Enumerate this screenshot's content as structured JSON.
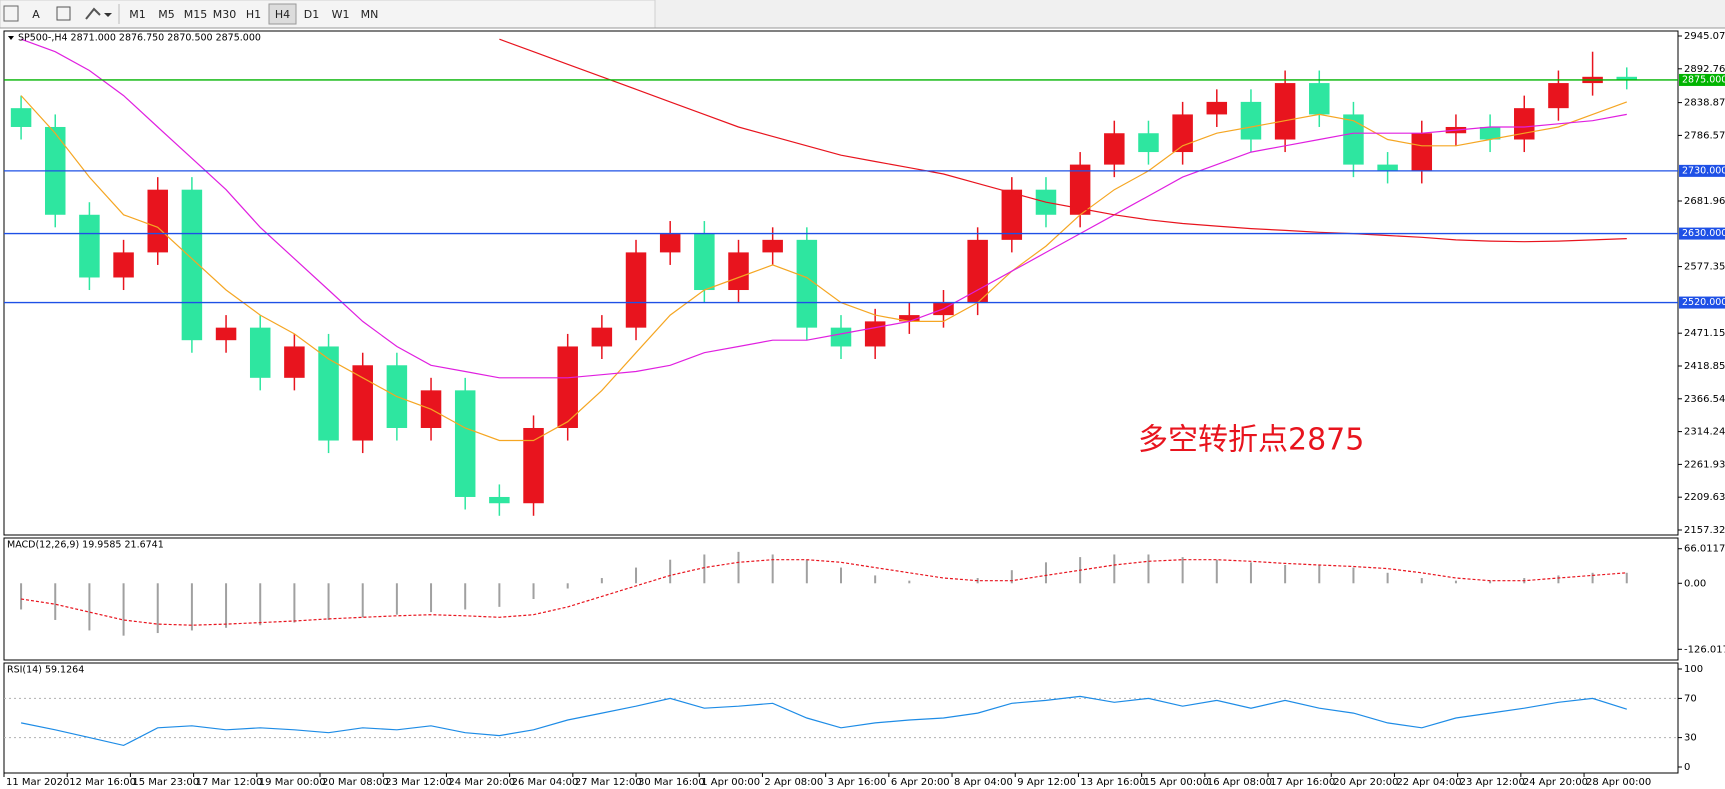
{
  "toolbar": {
    "text_tool": "A",
    "timeframes": [
      "M1",
      "M5",
      "M15",
      "M30",
      "H1",
      "H4",
      "D1",
      "W1",
      "MN"
    ],
    "active": "H4"
  },
  "chart_data": [
    {
      "type": "candlestick",
      "title": "SP500-,H4  2871.000 2876.750 2870.500 2875.000",
      "up_color": "#e8141e",
      "down_color": "#2ee6a0",
      "xlim": [
        0,
        49
      ],
      "ylim": [
        2157.325,
        2945.07
      ],
      "yticks": [
        {
          "value": 2945.07,
          "label": "2945.070"
        },
        {
          "value": 2892.765,
          "label": "2892.765"
        },
        {
          "value": 2838.87,
          "label": "2838.870"
        },
        {
          "value": 2786.57,
          "label": "2786.570"
        },
        {
          "value": 2681.96,
          "label": "2681.960"
        },
        {
          "value": 2577.35,
          "label": "2577.350"
        },
        {
          "value": 2471.155,
          "label": "2471.155"
        },
        {
          "value": 2418.85,
          "label": "2418.850"
        },
        {
          "value": 2366.545,
          "label": "2366.545"
        },
        {
          "value": 2314.24,
          "label": "2314.240"
        },
        {
          "value": 2261.935,
          "label": "2261.935"
        },
        {
          "value": 2209.63,
          "label": "2209.630"
        },
        {
          "value": 2157.325,
          "label": "2157.325"
        }
      ],
      "open": [
        2830,
        2800,
        2660,
        2560,
        2600,
        2700,
        2460,
        2480,
        2400,
        2450,
        2300,
        2420,
        2320,
        2380,
        2210,
        2200,
        2320,
        2450,
        2480,
        2600,
        2630,
        2540,
        2600,
        2620,
        2480,
        2450,
        2490,
        2500,
        2520,
        2620,
        2700,
        2660,
        2740,
        2790,
        2760,
        2820,
        2840,
        2780,
        2870,
        2820,
        2740,
        2730,
        2790,
        2800,
        2780,
        2830,
        2870,
        2880
      ],
      "high": [
        2850,
        2820,
        2680,
        2620,
        2720,
        2720,
        2500,
        2500,
        2470,
        2470,
        2440,
        2440,
        2400,
        2400,
        2230,
        2340,
        2470,
        2500,
        2620,
        2650,
        2650,
        2620,
        2640,
        2640,
        2500,
        2510,
        2520,
        2540,
        2640,
        2720,
        2720,
        2760,
        2810,
        2810,
        2840,
        2860,
        2860,
        2890,
        2890,
        2840,
        2760,
        2810,
        2820,
        2820,
        2850,
        2890,
        2920,
        2895
      ],
      "low": [
        2780,
        2640,
        2540,
        2540,
        2580,
        2440,
        2440,
        2380,
        2380,
        2280,
        2280,
        2300,
        2300,
        2190,
        2180,
        2180,
        2300,
        2430,
        2460,
        2580,
        2520,
        2520,
        2580,
        2460,
        2430,
        2430,
        2470,
        2480,
        2500,
        2600,
        2640,
        2640,
        2720,
        2740,
        2740,
        2800,
        2760,
        2760,
        2800,
        2720,
        2710,
        2710,
        2770,
        2760,
        2760,
        2810,
        2850,
        2860
      ],
      "close": [
        2800,
        2660,
        2560,
        2600,
        2700,
        2460,
        2480,
        2400,
        2450,
        2300,
        2420,
        2320,
        2380,
        2210,
        2200,
        2320,
        2450,
        2480,
        2600,
        2630,
        2540,
        2600,
        2620,
        2480,
        2450,
        2490,
        2500,
        2520,
        2620,
        2700,
        2660,
        2740,
        2790,
        2760,
        2820,
        2840,
        2780,
        2870,
        2820,
        2740,
        2730,
        2790,
        2800,
        2780,
        2830,
        2870,
        2880,
        2875
      ],
      "series": [
        {
          "color": "#f5a623",
          "values": [
            2850,
            2790,
            2720,
            2660,
            2640,
            2590,
            2540,
            2500,
            2470,
            2430,
            2400,
            2370,
            2350,
            2320,
            2300,
            2300,
            2330,
            2380,
            2440,
            2500,
            2540,
            2560,
            2580,
            2560,
            2520,
            2500,
            2490,
            2490,
            2520,
            2570,
            2610,
            2660,
            2700,
            2730,
            2770,
            2790,
            2800,
            2810,
            2820,
            2810,
            2780,
            2770,
            2770,
            2780,
            2790,
            2800,
            2820,
            2840
          ]
        },
        {
          "color": "#e020e0",
          "values": [
            2940,
            2920,
            2890,
            2850,
            2800,
            2750,
            2700,
            2640,
            2590,
            2540,
            2490,
            2450,
            2420,
            2410,
            2400,
            2400,
            2400,
            2405,
            2410,
            2420,
            2440,
            2450,
            2460,
            2460,
            2470,
            2480,
            2490,
            2510,
            2540,
            2570,
            2600,
            2630,
            2660,
            2690,
            2720,
            2740,
            2760,
            2770,
            2780,
            2790,
            2790,
            2790,
            2795,
            2800,
            2800,
            2805,
            2810,
            2820
          ]
        },
        {
          "color": "#e8141e",
          "values": [
            null,
            null,
            null,
            null,
            null,
            null,
            null,
            null,
            null,
            null,
            null,
            null,
            null,
            null,
            2940,
            2920,
            2900,
            2880,
            2860,
            2840,
            2820,
            2800,
            2785,
            2770,
            2755,
            2745,
            2735,
            2725,
            2710,
            2695,
            2680,
            2670,
            2660,
            2652,
            2646,
            2642,
            2638,
            2635,
            2632,
            2630,
            2627,
            2624,
            2620,
            2618,
            2617,
            2618,
            2620,
            2622
          ]
        }
      ],
      "levels": [
        {
          "value": 2875,
          "label": "2875.000",
          "color": "#00b400"
        },
        {
          "value": 2730,
          "label": "2730.000",
          "color": "#1e50e6"
        },
        {
          "value": 2630,
          "label": "2630.000",
          "color": "#1e50e6"
        },
        {
          "value": 2520,
          "label": "2520.000",
          "color": "#1e50e6"
        }
      ],
      "annotation": "多空转折点2875",
      "annotation_color": "#e8141e"
    },
    {
      "type": "macd",
      "title": "MACD(12,26,9) 19.9585 21.6741",
      "xlim": [
        0,
        49
      ],
      "ylim": [
        -135,
        75
      ],
      "yticks": [
        66.0117,
        {
          "value": 0,
          "label": "0.00"
        },
        -126.0171
      ],
      "histogram_color": "#a0a0a0",
      "signal_color": "#e8141e",
      "histogram": [
        -50,
        -70,
        -90,
        -100,
        -95,
        -90,
        -85,
        -80,
        -75,
        -70,
        -65,
        -60,
        -55,
        -50,
        -45,
        -30,
        -10,
        10,
        30,
        45,
        55,
        60,
        55,
        45,
        30,
        15,
        5,
        0,
        10,
        25,
        40,
        50,
        55,
        55,
        50,
        45,
        40,
        35,
        35,
        30,
        20,
        10,
        5,
        5,
        10,
        15,
        20,
        20
      ],
      "signal": [
        -30,
        -40,
        -55,
        -70,
        -78,
        -80,
        -78,
        -75,
        -72,
        -68,
        -65,
        -62,
        -60,
        -62,
        -65,
        -60,
        -45,
        -25,
        -5,
        15,
        30,
        40,
        45,
        45,
        40,
        30,
        20,
        10,
        5,
        5,
        15,
        25,
        35,
        42,
        45,
        45,
        42,
        38,
        35,
        32,
        28,
        20,
        10,
        5,
        5,
        10,
        15,
        20
      ]
    },
    {
      "type": "line",
      "title": "RSI(14) 59.1264",
      "xlim": [
        0,
        49
      ],
      "ylim": [
        0,
        100
      ],
      "yticks": [
        100,
        70,
        30,
        0
      ],
      "levels_dotted": true,
      "series": [
        {
          "color": "#1e8ce6",
          "values": [
            45,
            38,
            30,
            22,
            40,
            42,
            38,
            40,
            38,
            35,
            40,
            38,
            42,
            35,
            32,
            38,
            48,
            55,
            62,
            70,
            60,
            62,
            65,
            50,
            40,
            45,
            48,
            50,
            55,
            65,
            68,
            72,
            66,
            70,
            62,
            68,
            60,
            68,
            60,
            55,
            45,
            40,
            50,
            55,
            60,
            66,
            70,
            59
          ]
        }
      ],
      "xticks": [
        {
          "value": 0,
          "label": "11 Mar 2020"
        },
        {
          "value": 1.85,
          "label": "12 Mar 16:00"
        },
        {
          "value": 3.7,
          "label": "15 Mar 23:00"
        },
        {
          "value": 5.55,
          "label": "17 Mar 12:00"
        },
        {
          "value": 7.4,
          "label": "19 Mar 00:00"
        },
        {
          "value": 9.25,
          "label": "20 Mar 08:00"
        },
        {
          "value": 11.1,
          "label": "23 Mar 12:00"
        },
        {
          "value": 12.95,
          "label": "24 Mar 20:00"
        },
        {
          "value": 14.8,
          "label": "26 Mar 04:00"
        },
        {
          "value": 16.65,
          "label": "27 Mar 12:00"
        },
        {
          "value": 18.5,
          "label": "30 Mar 16:00"
        },
        {
          "value": 20.35,
          "label": "1 Apr 00:00"
        },
        {
          "value": 22.2,
          "label": "2 Apr 08:00"
        },
        {
          "value": 24.05,
          "label": "3 Apr 16:00"
        },
        {
          "value": 25.9,
          "label": "6 Apr 20:00"
        },
        {
          "value": 27.75,
          "label": "8 Apr 04:00"
        },
        {
          "value": 29.6,
          "label": "9 Apr 12:00"
        },
        {
          "value": 31.45,
          "label": "13 Apr 16:00"
        },
        {
          "value": 33.3,
          "label": "15 Apr 00:00"
        },
        {
          "value": 35.15,
          "label": "16 Apr 08:00"
        },
        {
          "value": 37,
          "label": "17 Apr 16:00"
        },
        {
          "value": 38.85,
          "label": "20 Apr 20:00"
        },
        {
          "value": 40.7,
          "label": "22 Apr 04:00"
        },
        {
          "value": 42.55,
          "label": "23 Apr 12:00"
        },
        {
          "value": 44.4,
          "label": "24 Apr 20:00"
        },
        {
          "value": 46.25,
          "label": "28 Apr 00:00"
        }
      ]
    }
  ]
}
